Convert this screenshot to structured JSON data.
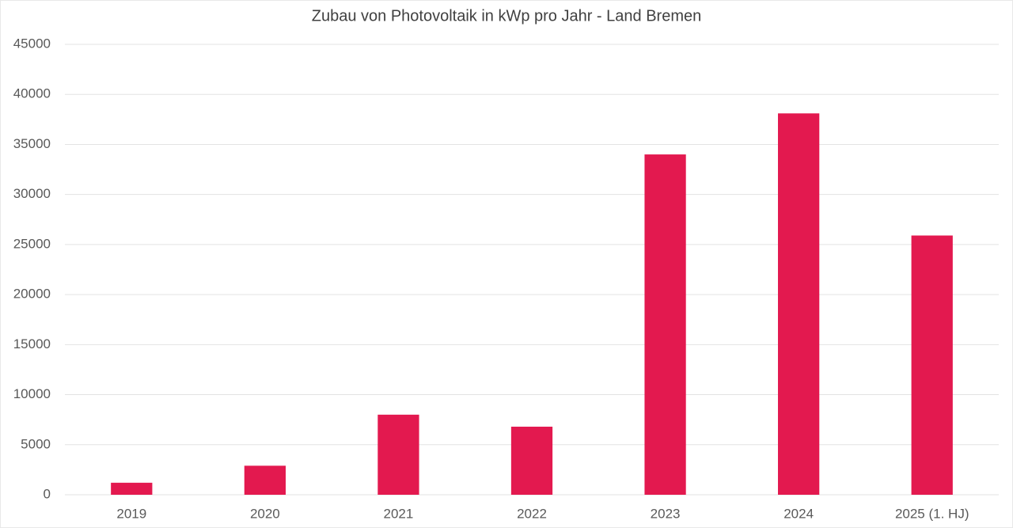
{
  "chart_data": {
    "type": "bar",
    "title": "Zubau von Photovoltaik in kWp pro Jahr - Land Bremen",
    "categories": [
      "2019",
      "2020",
      "2021",
      "2022",
      "2023",
      "2024",
      "2025 (1. HJ)"
    ],
    "values": [
      1200,
      2900,
      8000,
      6800,
      34000,
      38100,
      25900
    ],
    "color": "#e3194f",
    "ylim": [
      0,
      45000
    ],
    "yticks": [
      0,
      5000,
      10000,
      15000,
      20000,
      25000,
      30000,
      35000,
      40000,
      45000
    ],
    "grid": true
  }
}
